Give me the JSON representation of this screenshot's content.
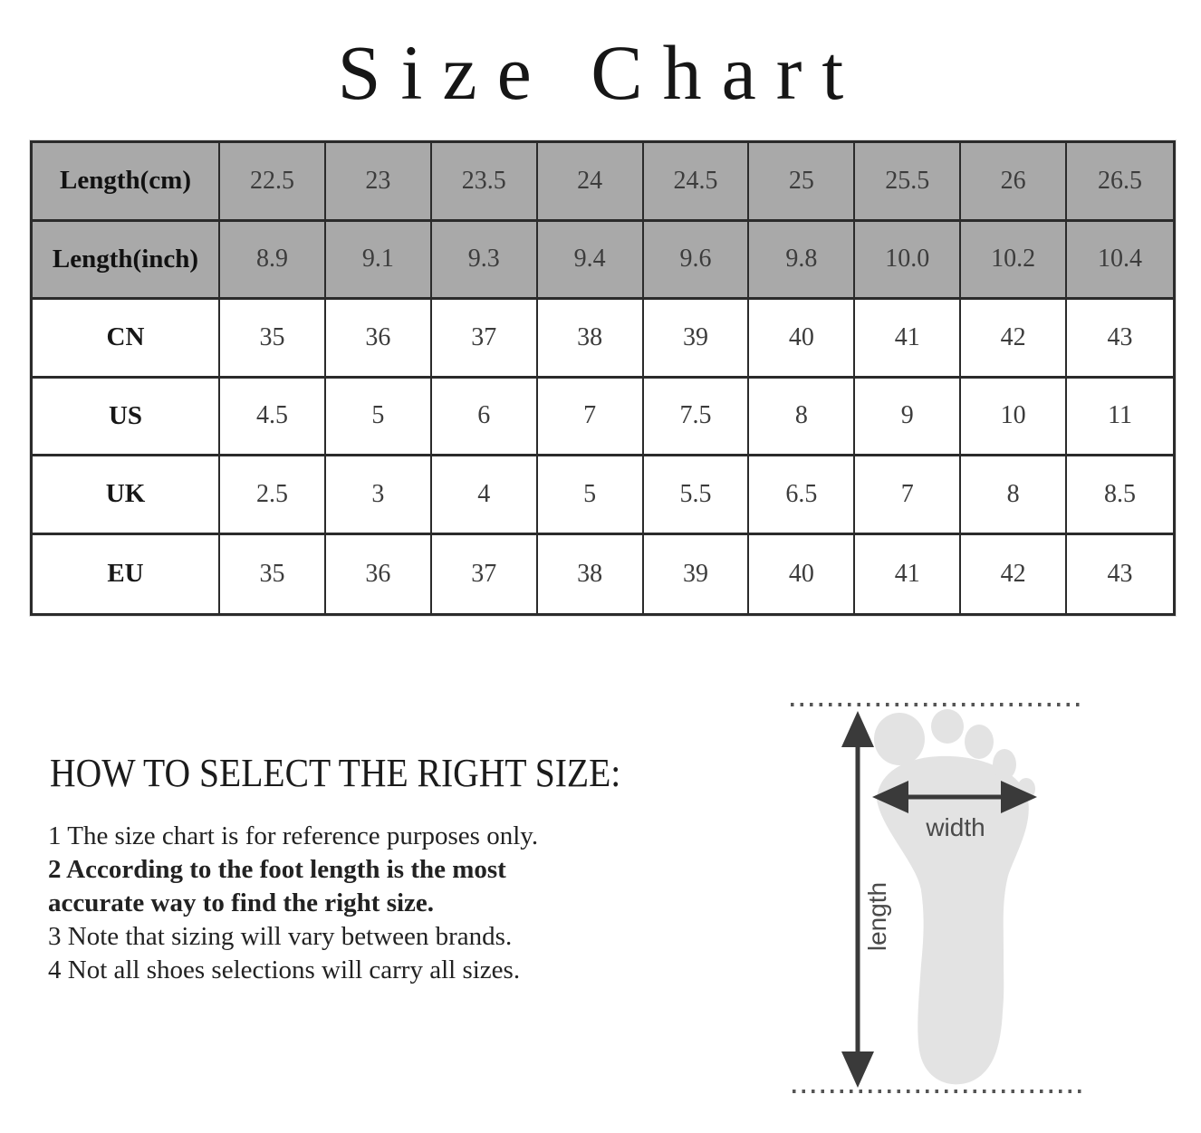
{
  "title": "Size Chart",
  "table": {
    "rows": [
      {
        "label": "Length(cm)",
        "header": true,
        "values": [
          "22.5",
          "23",
          "23.5",
          "24",
          "24.5",
          "25",
          "25.5",
          "26",
          "26.5"
        ]
      },
      {
        "label": "Length(inch)",
        "header": true,
        "values": [
          "8.9",
          "9.1",
          "9.3",
          "9.4",
          "9.6",
          "9.8",
          "10.0",
          "10.2",
          "10.4"
        ]
      },
      {
        "label": "CN",
        "header": false,
        "values": [
          "35",
          "36",
          "37",
          "38",
          "39",
          "40",
          "41",
          "42",
          "43"
        ]
      },
      {
        "label": "US",
        "header": false,
        "values": [
          "4.5",
          "5",
          "6",
          "7",
          "7.5",
          "8",
          "9",
          "10",
          "11"
        ]
      },
      {
        "label": "UK",
        "header": false,
        "values": [
          "2.5",
          "3",
          "4",
          "5",
          "5.5",
          "6.5",
          "7",
          "8",
          "8.5"
        ]
      },
      {
        "label": "EU",
        "header": false,
        "values": [
          "35",
          "36",
          "37",
          "38",
          "39",
          "40",
          "41",
          "42",
          "43"
        ]
      }
    ]
  },
  "howto": {
    "heading": "HOW TO SELECT THE RIGHT SIZE:",
    "items": [
      {
        "text": "1 The size chart is for reference purposes only.",
        "bold": false
      },
      {
        "text": "2 According to the foot length is the most\naccurate way to find the right size.",
        "bold": true
      },
      {
        "text": "3 Note that sizing will vary between brands.",
        "bold": false
      },
      {
        "text": "4 Not all shoes selections will carry all sizes.",
        "bold": false
      }
    ]
  },
  "diagram": {
    "width_label": "width",
    "length_label": "length"
  },
  "colors": {
    "header_bg": "#a9a9a9",
    "table_border": "#2b2b2b",
    "foot_fill": "#e3e3e3",
    "arrow": "#3a3a3a",
    "dotted": "#555555"
  }
}
